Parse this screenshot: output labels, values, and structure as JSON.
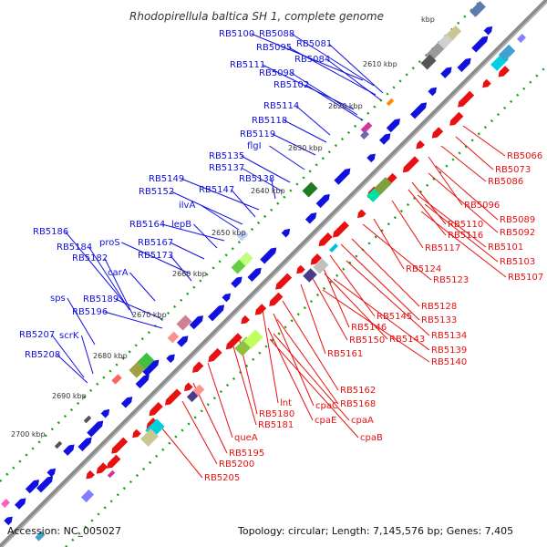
{
  "title": "Rhodopirellula baltica SH 1, complete genome",
  "title_fragment": "kbp",
  "footer": {
    "accession": "Accession: NC_005027",
    "stats": "Topology: circular; Length: 7,145,576 bp; Genes: 7,405"
  },
  "colors": {
    "forward": "#1010e0",
    "reverse": "#e81010",
    "backbone": "#7a7a7a",
    "ticks": "#18a018"
  },
  "scale_labels": [
    "2610 kbp",
    "2620 kbp",
    "2630 kbp",
    "2640 kbp",
    "2650 kbp",
    "2660 kbp",
    "2670 kbp",
    "2680 kbp",
    "2690 kbp",
    "2700 kbp"
  ],
  "forward_labels": [
    "RB5100",
    "RB5088",
    "RB5081",
    "RB5095",
    "RB5084",
    "RB5111",
    "RB5098",
    "RB5102",
    "RB5114",
    "RB5118",
    "RB5119",
    "flgI",
    "RB5135",
    "RB5137",
    "RB5138",
    "RB5149",
    "RB5147",
    "RB5152",
    "ilvA",
    "RB5164",
    "lepB",
    "RB5186",
    "proS",
    "RB5167",
    "RB5184",
    "RB5173",
    "RB5182",
    "carA",
    "sps",
    "RB5189",
    "RB5196",
    "RB5207",
    "scrK",
    "RB5208"
  ],
  "reverse_labels": [
    "RB5066",
    "RB5073",
    "RB5086",
    "RB5096",
    "RB5089",
    "RB5092",
    "RB5110",
    "RB5116",
    "RB5101",
    "RB5117",
    "RB5103",
    "RB5107",
    "RB5124",
    "RB5123",
    "RB5128",
    "RB5133",
    "RB5145",
    "RB5146",
    "RB5134",
    "RB5143",
    "RB5150",
    "RB5139",
    "RB5161",
    "RB5140",
    "RB5162",
    "lnt",
    "cpaC",
    "RB5168",
    "RB5180",
    "cpaE",
    "cpaA",
    "RB5181",
    "queA",
    "cpaB",
    "RB5195",
    "RB5200",
    "RB5205"
  ]
}
